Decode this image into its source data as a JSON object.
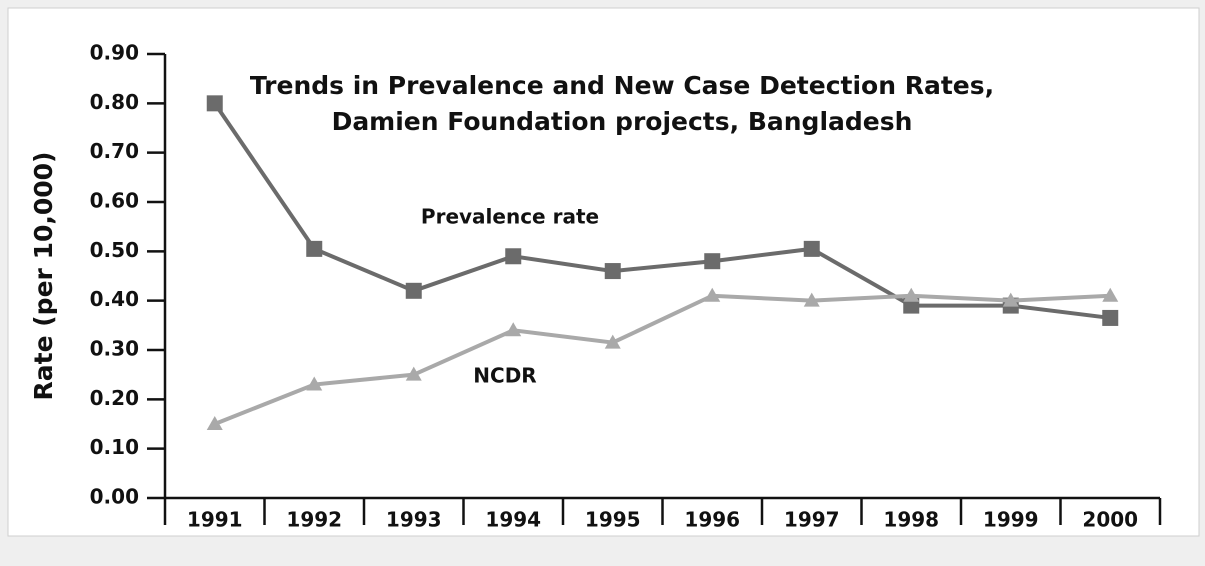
{
  "chart_data": {
    "type": "line",
    "title": [
      "Trends in Prevalence and New Case Detection Rates,",
      "Damien Foundation projects, Bangladesh"
    ],
    "y_label": "Rate (per 10,000)",
    "categories": [
      "1991",
      "1992",
      "1993",
      "1994",
      "1995",
      "1996",
      "1997",
      "1998",
      "1999",
      "2000"
    ],
    "series": [
      {
        "name": "Prevalence rate",
        "color": "#6b6b6b",
        "marker": "square",
        "values": [
          0.8,
          0.505,
          0.42,
          0.49,
          0.46,
          0.48,
          0.505,
          0.39,
          0.39,
          0.365
        ]
      },
      {
        "name": "NCDR",
        "color": "#a9a9a9",
        "marker": "triangle",
        "values": [
          0.15,
          0.23,
          0.25,
          0.34,
          0.315,
          0.41,
          0.4,
          0.41,
          0.4,
          0.41
        ]
      }
    ],
    "ylim": [
      0,
      0.9
    ],
    "yticks": [
      {
        "value": 0,
        "label": "0.00"
      },
      {
        "value": 0.1,
        "label": "0.10"
      },
      {
        "value": 0.2,
        "label": "0.20"
      },
      {
        "value": 0.3,
        "label": "0.30"
      },
      {
        "value": 0.4,
        "label": "0.40"
      },
      {
        "value": 0.5,
        "label": "0.50"
      },
      {
        "value": 0.6,
        "label": "0.60"
      },
      {
        "value": 0.7,
        "label": "0.70"
      },
      {
        "value": 0.8,
        "label": "0.80"
      },
      {
        "value": 0.9,
        "label": "0.90"
      }
    ],
    "grid": false
  }
}
